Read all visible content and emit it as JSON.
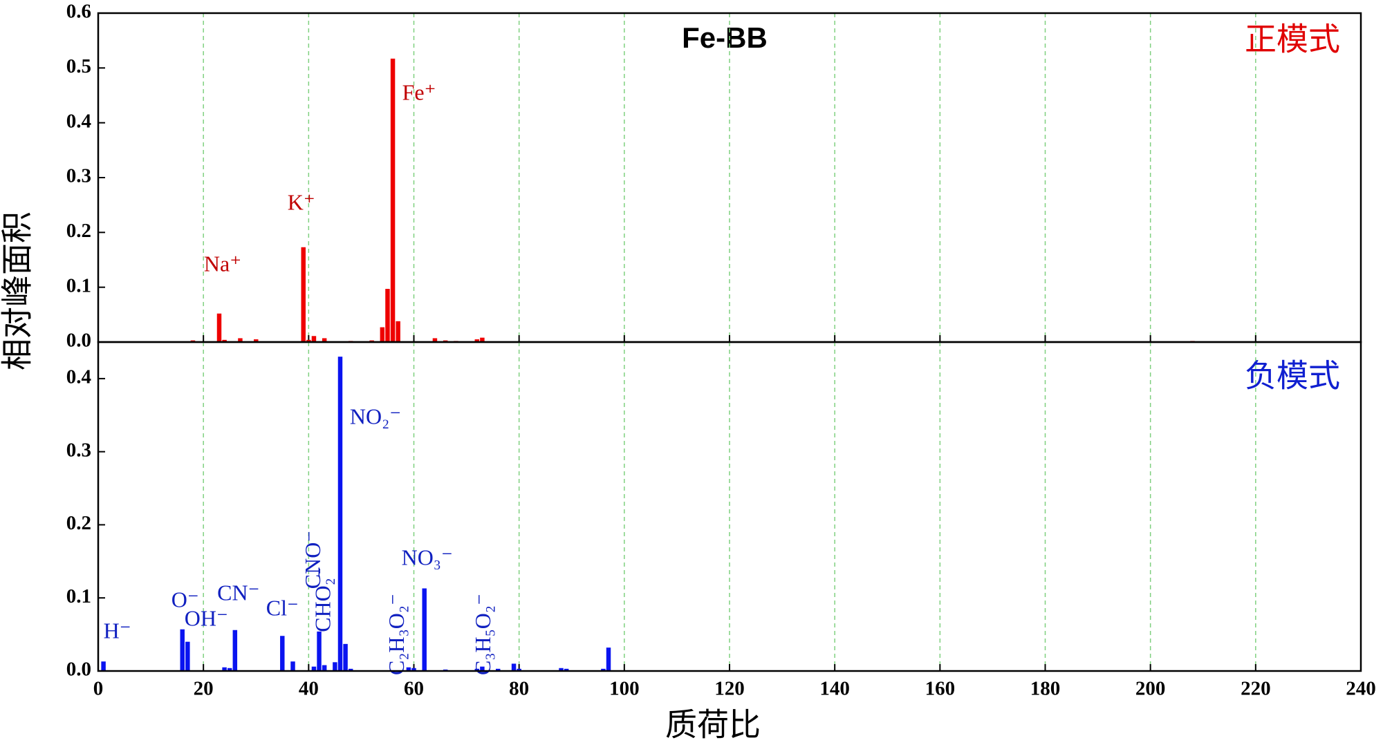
{
  "chart_data": [
    {
      "type": "bar",
      "title": "Fe-BB",
      "panel_label": "正模式",
      "ylabel": "相对峰面积",
      "x": [
        18,
        23,
        24,
        27,
        30,
        39,
        40,
        41,
        43,
        48,
        52,
        54,
        55,
        56,
        57,
        64,
        66,
        68,
        72,
        73,
        208
      ],
      "values": [
        0.003,
        0.052,
        0.004,
        0.007,
        0.005,
        0.173,
        0.004,
        0.011,
        0.007,
        0.002,
        0.003,
        0.027,
        0.097,
        0.517,
        0.038,
        0.007,
        0.003,
        0.002,
        0.005,
        0.008,
        0.002
      ],
      "color": "#ee0000",
      "annotation_color": "#c00000",
      "annotations": [
        {
          "text": "Na⁺",
          "x": 23
        },
        {
          "text": "K⁺",
          "x": 39
        },
        {
          "text": "Fe⁺",
          "x": 56
        }
      ],
      "xlim": [
        0,
        240
      ],
      "xticks": [
        0,
        20,
        40,
        60,
        80,
        100,
        120,
        140,
        160,
        180,
        200,
        220,
        240
      ],
      "ylim": [
        0,
        0.6
      ],
      "yticks": [
        {
          "value": 0,
          "label": "0.0"
        },
        0.1,
        0.2,
        0.3,
        0.4,
        0.5,
        0.6
      ],
      "grid": true
    },
    {
      "type": "bar",
      "panel_label": "负模式",
      "xlabel": "质荷比",
      "x": [
        1,
        16,
        17,
        24,
        25,
        26,
        35,
        37,
        41,
        42,
        43,
        45,
        46,
        47,
        48,
        59,
        60,
        62,
        66,
        72,
        73,
        76,
        79,
        80,
        88,
        89,
        96,
        97
      ],
      "values": [
        0.013,
        0.057,
        0.04,
        0.005,
        0.004,
        0.056,
        0.048,
        0.013,
        0.006,
        0.054,
        0.008,
        0.012,
        0.43,
        0.037,
        0.003,
        0.005,
        0.004,
        0.113,
        0.002,
        0.003,
        0.006,
        0.003,
        0.01,
        0.003,
        0.004,
        0.003,
        0.003,
        0.032
      ],
      "color": "#0a14f0",
      "annotation_color": "#1020c0",
      "annotations": [
        {
          "text": "H⁻",
          "x": 1
        },
        {
          "text": "O⁻",
          "x": 16
        },
        {
          "text": "OH⁻",
          "x": 17
        },
        {
          "text": "CN⁻",
          "x": 26
        },
        {
          "text": "Cl⁻",
          "x": 35
        },
        {
          "text": "CNO⁻",
          "x": 42
        },
        {
          "text": "CHO₂⁻",
          "x": 45
        },
        {
          "text": "NO₂⁻",
          "x": 46
        },
        {
          "text": "C₂H₃O₂⁻",
          "x": 59
        },
        {
          "text": "NO₃⁻",
          "x": 62
        },
        {
          "text": "C₃H₅O₂⁻",
          "x": 73
        }
      ],
      "xlim": [
        0,
        240
      ],
      "xticks": [
        0,
        20,
        40,
        60,
        80,
        100,
        120,
        140,
        160,
        180,
        200,
        220,
        240
      ],
      "ylim": [
        0,
        0.45
      ],
      "yticks": [
        {
          "value": 0,
          "label": "0.0"
        },
        0.1,
        0.2,
        0.3,
        0.4
      ],
      "grid": true
    }
  ]
}
